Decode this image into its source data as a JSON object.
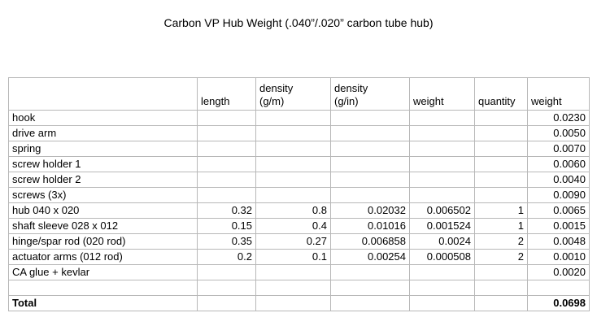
{
  "title": "Carbon VP Hub Weight (.040”/.020” carbon tube hub)",
  "table": {
    "header": [
      null,
      [
        "length"
      ],
      [
        "density",
        "(g/m)"
      ],
      [
        "density",
        "(g/in)"
      ],
      [
        "weight"
      ],
      [
        "quantity"
      ],
      [
        "weight"
      ]
    ],
    "rows": [
      [
        "hook",
        null,
        null,
        null,
        null,
        null,
        "0.0230"
      ],
      [
        "drive arm",
        null,
        null,
        null,
        null,
        null,
        "0.0050"
      ],
      [
        "spring",
        null,
        null,
        null,
        null,
        null,
        "0.0070"
      ],
      [
        "screw holder 1",
        null,
        null,
        null,
        null,
        null,
        "0.0060"
      ],
      [
        "screw holder 2",
        null,
        null,
        null,
        null,
        null,
        "0.0040"
      ],
      [
        "screws (3x)",
        null,
        null,
        null,
        null,
        null,
        "0.0090"
      ],
      [
        "hub 040 x 020",
        "0.32",
        "0.8",
        "0.02032",
        "0.006502",
        "1",
        "0.0065"
      ],
      [
        "shaft sleeve 028 x 012",
        "0.15",
        "0.4",
        "0.01016",
        "0.001524",
        "1",
        "0.0015"
      ],
      [
        "hinge/spar rod  (020 rod)",
        "0.35",
        "0.27",
        "0.006858",
        "0.0024",
        "2",
        "0.0048"
      ],
      [
        "actuator arms (012 rod)",
        "0.2",
        "0.1",
        "0.00254",
        "0.000508",
        "2",
        "0.0010"
      ],
      [
        "CA glue + kevlar",
        null,
        null,
        null,
        null,
        null,
        "0.0020"
      ],
      [
        null,
        null,
        null,
        null,
        null,
        null,
        null
      ],
      [
        "Total",
        null,
        null,
        null,
        null,
        null,
        "0.0698"
      ]
    ]
  }
}
